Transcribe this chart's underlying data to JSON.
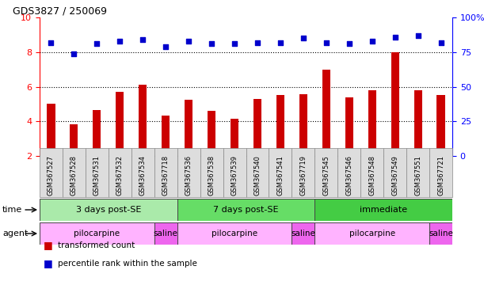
{
  "title": "GDS3827 / 250069",
  "samples": [
    "GSM367527",
    "GSM367528",
    "GSM367531",
    "GSM367532",
    "GSM367534",
    "GSM367718",
    "GSM367536",
    "GSM367538",
    "GSM367539",
    "GSM367540",
    "GSM367541",
    "GSM367719",
    "GSM367545",
    "GSM367546",
    "GSM367548",
    "GSM367549",
    "GSM367551",
    "GSM367721"
  ],
  "red_values": [
    5.0,
    3.85,
    4.65,
    5.7,
    6.1,
    4.35,
    5.25,
    4.6,
    4.15,
    5.3,
    5.5,
    5.55,
    7.0,
    5.4,
    5.8,
    8.0,
    5.8,
    5.5
  ],
  "blue_values": [
    82,
    74,
    81,
    83,
    84,
    79,
    83,
    81,
    81,
    82,
    82,
    85,
    82,
    81,
    83,
    86,
    87,
    82
  ],
  "ylim_left": [
    2,
    10
  ],
  "ylim_right": [
    0,
    100
  ],
  "yticks_left": [
    2,
    4,
    6,
    8,
    10
  ],
  "yticks_right": [
    0,
    25,
    50,
    75,
    100
  ],
  "time_groups": [
    {
      "label": "3 days post-SE",
      "start": 0,
      "end": 6,
      "color": "#AAEAAA"
    },
    {
      "label": "7 days post-SE",
      "start": 6,
      "end": 12,
      "color": "#66DD66"
    },
    {
      "label": "immediate",
      "start": 12,
      "end": 18,
      "color": "#44CC44"
    }
  ],
  "agent_groups": [
    {
      "label": "pilocarpine",
      "start": 0,
      "end": 5,
      "color": "#FFB3FF"
    },
    {
      "label": "saline",
      "start": 5,
      "end": 6,
      "color": "#EE66EE"
    },
    {
      "label": "pilocarpine",
      "start": 6,
      "end": 11,
      "color": "#FFB3FF"
    },
    {
      "label": "saline",
      "start": 11,
      "end": 12,
      "color": "#EE66EE"
    },
    {
      "label": "pilocarpine",
      "start": 12,
      "end": 17,
      "color": "#FFB3FF"
    },
    {
      "label": "saline",
      "start": 17,
      "end": 18,
      "color": "#EE66EE"
    }
  ],
  "bar_color": "#CC0000",
  "dot_color": "#0000CC",
  "grid_color": "#555555",
  "bg_color": "#FFFFFF",
  "cell_bg_color": "#DDDDDD",
  "cell_border_color": "#888888"
}
